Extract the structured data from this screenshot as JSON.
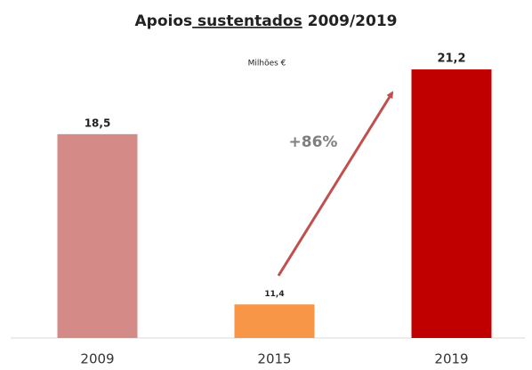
{
  "chart_data": {
    "type": "bar",
    "title": "Apoios sustentados 2009/2019",
    "subtitle": "Milhões €",
    "categories": [
      "2009",
      "2015",
      "2019"
    ],
    "values": [
      18.5,
      11.4,
      21.2
    ],
    "value_labels": [
      "18,5",
      "11,4",
      "21,2"
    ],
    "colors": [
      "#d48a87",
      "#f79646",
      "#c00000"
    ],
    "annotation": "+86%",
    "ylim": [
      10,
      22.5
    ]
  }
}
